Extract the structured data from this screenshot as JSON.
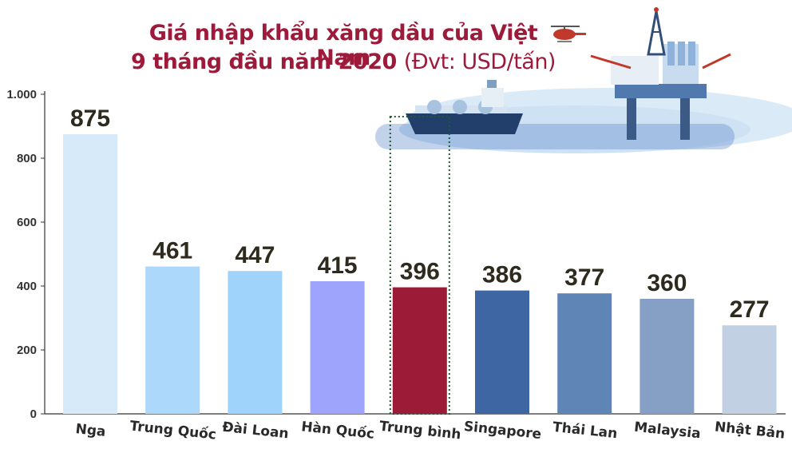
{
  "title": {
    "line1": "Giá nhập khẩu xăng dầu của Việt Nam",
    "line2": "9 tháng đầu năm 2020",
    "unit": "(Đvt: USD/tấn)"
  },
  "chart_data": {
    "type": "bar",
    "categories": [
      "Nga",
      "Trung Quốc",
      "Đài Loan",
      "Hàn Quốc",
      "Trung bình",
      "Singapore",
      "Thái Lan",
      "Malaysia",
      "Nhật Bản"
    ],
    "values": [
      875,
      461,
      447,
      415,
      396,
      386,
      377,
      360,
      277
    ],
    "value_labels": [
      "875",
      "461",
      "447",
      "415",
      "396",
      "386",
      "377",
      "360",
      "277"
    ],
    "colors": [
      "#d6eafa",
      "#acd9fb",
      "#9fd3fb",
      "#9ea4fc",
      "#9c1c38",
      "#3e66a3",
      "#5f84b6",
      "#869fc5",
      "#c2d0e3"
    ],
    "highlight_category": "Trung bình",
    "yticks": [
      0,
      200,
      400,
      600,
      800,
      1000
    ],
    "ytick_labels": [
      "0",
      "200",
      "400",
      "600",
      "800",
      "1.000"
    ],
    "ylim": [
      0,
      1000
    ],
    "grid": false,
    "xlabel": "",
    "ylabel": ""
  }
}
